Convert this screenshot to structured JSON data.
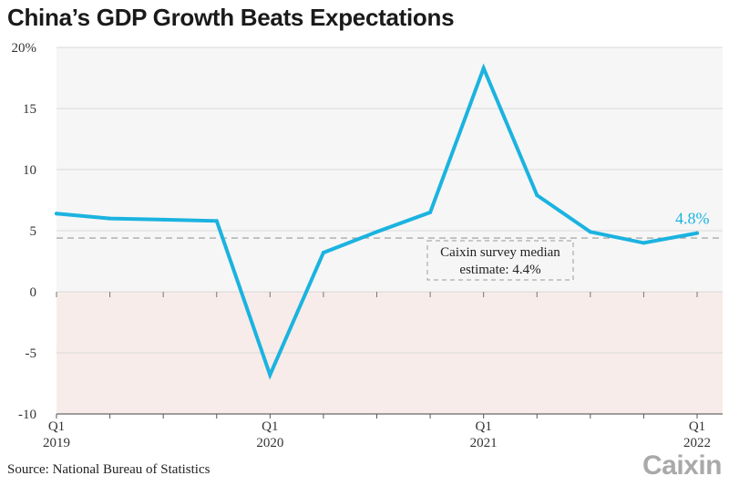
{
  "chart_data": {
    "type": "line",
    "title": "China’s GDP Growth Beats Expectations",
    "source": "Source: National Bureau of Statistics",
    "brand": "Caixin",
    "x": [
      "2019-Q1",
      "2019-Q2",
      "2019-Q3",
      "2019-Q4",
      "2020-Q1",
      "2020-Q2",
      "2020-Q3",
      "2020-Q4",
      "2021-Q1",
      "2021-Q2",
      "2021-Q3",
      "2021-Q4",
      "2022-Q1"
    ],
    "series": [
      {
        "values": [
          6.4,
          6.0,
          5.9,
          5.8,
          -6.8,
          3.2,
          4.9,
          6.5,
          18.3,
          7.9,
          4.9,
          4.0,
          4.8
        ]
      }
    ],
    "ylim": [
      -10,
      20
    ],
    "yticks": [
      {
        "value": 20,
        "label": "20%"
      },
      {
        "value": 15,
        "label": "15"
      },
      {
        "value": 10,
        "label": "10"
      },
      {
        "value": 5,
        "label": "5"
      },
      {
        "value": 0,
        "label": "0"
      },
      {
        "value": -5,
        "label": "-5"
      },
      {
        "value": -10,
        "label": "-10"
      }
    ],
    "xticks": [
      {
        "index": 0,
        "q": "Q1",
        "year": "2019"
      },
      {
        "index": 4,
        "q": "Q1",
        "year": "2020"
      },
      {
        "index": 8,
        "q": "Q1",
        "year": "2021"
      },
      {
        "index": 12,
        "q": "Q1",
        "year": "2022"
      }
    ],
    "reference_line": {
      "value": 4.4,
      "label_line1": "Caixin survey median",
      "label_line2": "estimate: 4.4%"
    },
    "last_value_label": "4.8%",
    "colors": {
      "line": "#1bb3e0",
      "positive_bg": "#f6f6f6",
      "negative_bg": "#f7ece9",
      "reference": "#999999",
      "grid": "#d9d9d9"
    }
  }
}
